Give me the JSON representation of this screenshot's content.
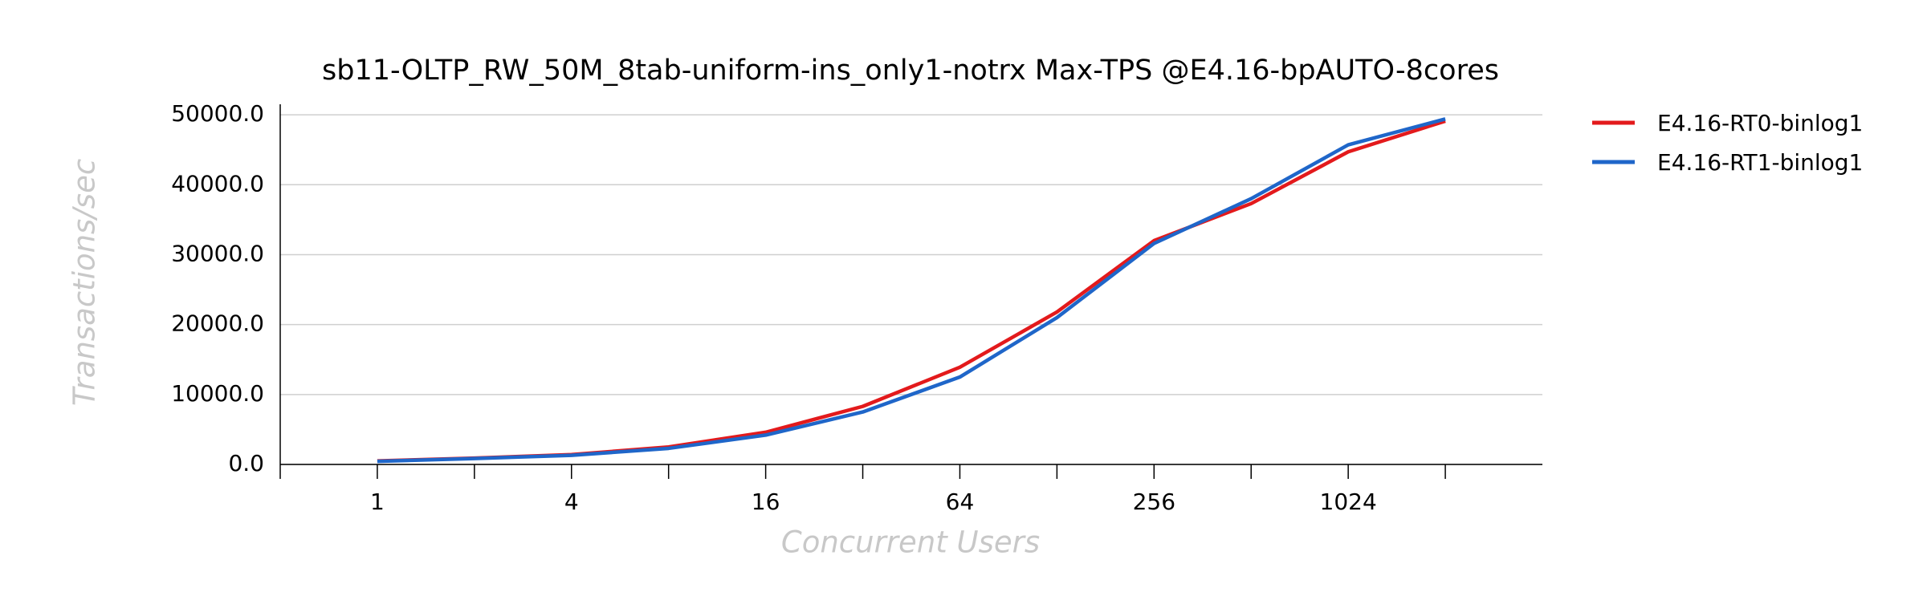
{
  "chart_data": {
    "type": "line",
    "title": "sb11-OLTP_RW_50M_8tab-uniform-ins_only1-notrx Max-TPS @E4.16-bpAUTO-8cores",
    "xlabel": "Concurrent Users",
    "ylabel": "Transactions/sec",
    "x": [
      1,
      2,
      4,
      8,
      16,
      32,
      64,
      128,
      256,
      512,
      1024,
      2048
    ],
    "xscale": "log",
    "xbase": 2,
    "xlim": [
      0.5,
      4096
    ],
    "xticks": [
      1,
      4,
      16,
      64,
      256,
      1024
    ],
    "xticks_minor": [
      0.5,
      2,
      8,
      32,
      128,
      512,
      2048
    ],
    "ylim": [
      0,
      51500
    ],
    "yticks": [
      {
        "value": 0,
        "label": "0.0"
      },
      {
        "value": 10000,
        "label": "10000.0"
      },
      {
        "value": 20000,
        "label": "20000.0"
      },
      {
        "value": 30000,
        "label": "30000.0"
      },
      {
        "value": 40000,
        "label": "40000.0"
      },
      {
        "value": 50000,
        "label": "50000.0"
      }
    ],
    "grid": true,
    "legend": "right",
    "series": [
      {
        "name": "E4.16-RT0-binlog1",
        "color": "#e31a1c",
        "values": [
          500,
          900,
          1400,
          2500,
          4600,
          8300,
          13900,
          21800,
          32000,
          37300,
          44700,
          49100
        ]
      },
      {
        "name": "E4.16-RT1-binlog1",
        "color": "#1f66c9",
        "values": [
          450,
          850,
          1300,
          2300,
          4200,
          7500,
          12500,
          21000,
          31600,
          38000,
          45700,
          49400
        ]
      }
    ]
  }
}
